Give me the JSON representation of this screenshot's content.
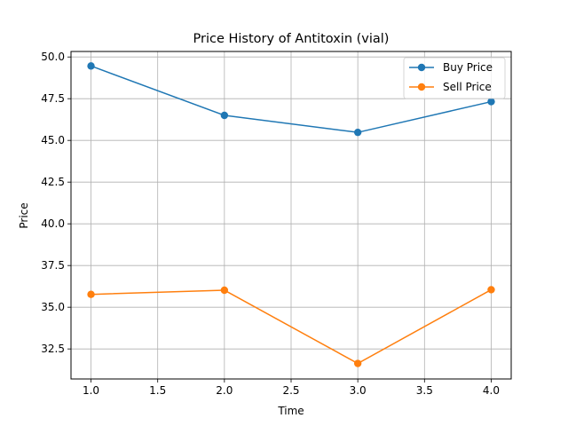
{
  "chart_data": {
    "type": "line",
    "title": "Price History of Antitoxin (vial)",
    "xlabel": "Time",
    "ylabel": "Price",
    "x": [
      1,
      2,
      3,
      4
    ],
    "xlim": [
      0.85,
      4.15
    ],
    "ylim": [
      30.7,
      50.33
    ],
    "xticks": [
      1.0,
      1.5,
      2.0,
      2.5,
      3.0,
      3.5,
      4.0
    ],
    "xtick_labels": [
      "1.0",
      "1.5",
      "2.0",
      "2.5",
      "3.0",
      "3.5",
      "4.0"
    ],
    "yticks": [
      32.5,
      35.0,
      37.5,
      40.0,
      42.5,
      45.0,
      47.5,
      50.0
    ],
    "ytick_labels": [
      "32.5",
      "35.0",
      "37.5",
      "40.0",
      "42.5",
      "45.0",
      "47.5",
      "50.0"
    ],
    "grid": true,
    "legend_position": "top-right",
    "series": [
      {
        "name": "Buy Price",
        "color": "#1f77b4",
        "marker": "circle",
        "values": [
          49.46,
          46.5,
          45.48,
          47.32
        ]
      },
      {
        "name": "Sell Price",
        "color": "#ff7f0e",
        "marker": "circle",
        "values": [
          35.77,
          36.02,
          31.63,
          36.05
        ]
      }
    ]
  }
}
